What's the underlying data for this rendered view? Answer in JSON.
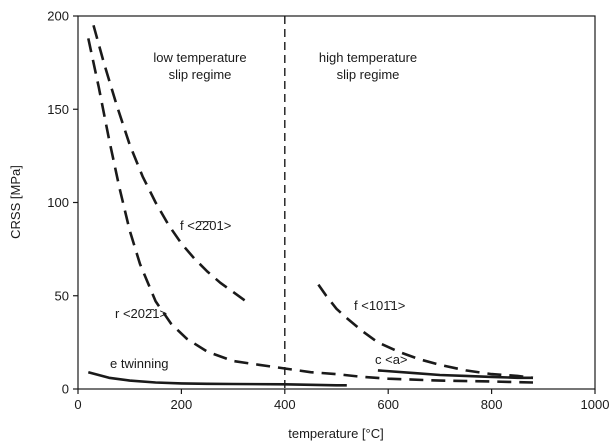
{
  "chart_data": {
    "type": "line",
    "xlabel": "temperature [°C]",
    "ylabel": "CRSS [MPa]",
    "xlim": [
      0,
      1000
    ],
    "ylim": [
      0,
      200
    ],
    "xticks": [
      "0",
      "200",
      "400",
      "600",
      "800",
      "1000"
    ],
    "yticks": [
      "0",
      "50",
      "100",
      "150",
      "200"
    ],
    "grid": false,
    "divider_x": 400,
    "regions": [
      {
        "line1": "low temperature",
        "line2": "slip regime"
      },
      {
        "line1": "high temperature",
        "line2": "slip regime"
      }
    ],
    "series": [
      {
        "name": "f <2̄2̄01>",
        "style": "dashed",
        "x": [
          30,
          50,
          75,
          100,
          125,
          150,
          175,
          200,
          225,
          250,
          275,
          300,
          325
        ],
        "y": [
          195,
          175,
          152,
          131,
          114,
          100,
          88,
          78,
          70,
          63,
          57,
          52,
          47
        ]
      },
      {
        "name": "r <202̄1>",
        "style": "dashed",
        "x": [
          20,
          40,
          60,
          80,
          100,
          120,
          150,
          180,
          210,
          250,
          300,
          350,
          400,
          450,
          500,
          550,
          600,
          700,
          800,
          880
        ],
        "y": [
          188,
          162,
          134,
          108,
          85,
          67,
          47,
          35,
          27,
          20,
          15,
          13,
          11,
          9,
          8,
          6.5,
          5.5,
          4.5,
          4,
          3.5
        ]
      },
      {
        "name": "f <101̄1>",
        "style": "dashed",
        "x": [
          465,
          480,
          500,
          520,
          550,
          580,
          620,
          660,
          700,
          750,
          800,
          850,
          880
        ],
        "y": [
          56,
          50,
          43,
          38,
          31,
          25,
          20,
          16,
          13,
          10,
          8,
          7,
          6
        ]
      },
      {
        "name": "c <a>",
        "style": "solid",
        "x": [
          580,
          650,
          700,
          750,
          800,
          850,
          880
        ],
        "y": [
          10,
          8.5,
          7.5,
          7,
          6.5,
          6,
          6
        ]
      },
      {
        "name": "e twinning",
        "style": "solid",
        "x": [
          20,
          60,
          100,
          150,
          200,
          250,
          300,
          400,
          500,
          520
        ],
        "y": [
          9,
          6,
          4.5,
          3.5,
          3,
          2.8,
          2.7,
          2.5,
          2,
          2
        ]
      }
    ]
  },
  "annotations": {
    "f_2201": "f <2̄2̄01>",
    "r_2021": "r <202̄1>",
    "f_1011": "f <101̄1>",
    "c_a": "c <a>",
    "e_twinning": "e twinning"
  }
}
